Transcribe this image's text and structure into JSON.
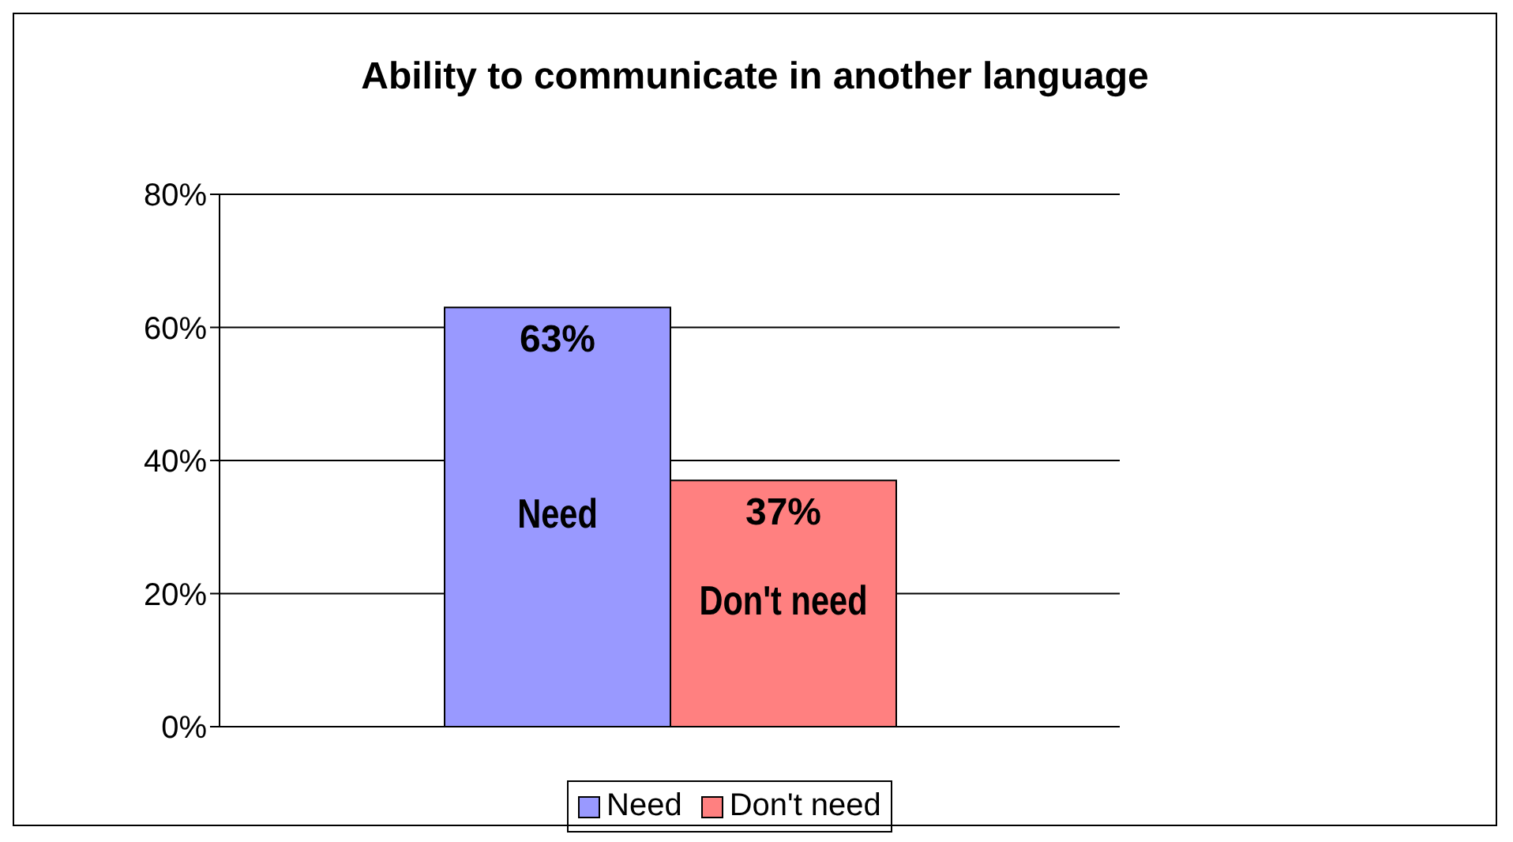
{
  "chart_data": {
    "type": "bar",
    "title": "Ability to communicate in another language",
    "categories": [
      null
    ],
    "series": [
      {
        "name": "Need",
        "color": "#9999ff",
        "values": [
          63
        ],
        "value_labels": [
          "63%"
        ]
      },
      {
        "name": "Don't need",
        "color": "#ff8080",
        "values": [
          37
        ],
        "value_labels": [
          "37%"
        ]
      }
    ],
    "ylim": [
      0,
      80
    ],
    "yticks": [
      {
        "value": 0,
        "label": "0%"
      },
      {
        "value": 20,
        "label": "20%"
      },
      {
        "value": 40,
        "label": "40%"
      },
      {
        "value": 60,
        "label": "60%"
      },
      {
        "value": 80,
        "label": "80%"
      }
    ],
    "grid": "y",
    "legend": "bottom"
  }
}
